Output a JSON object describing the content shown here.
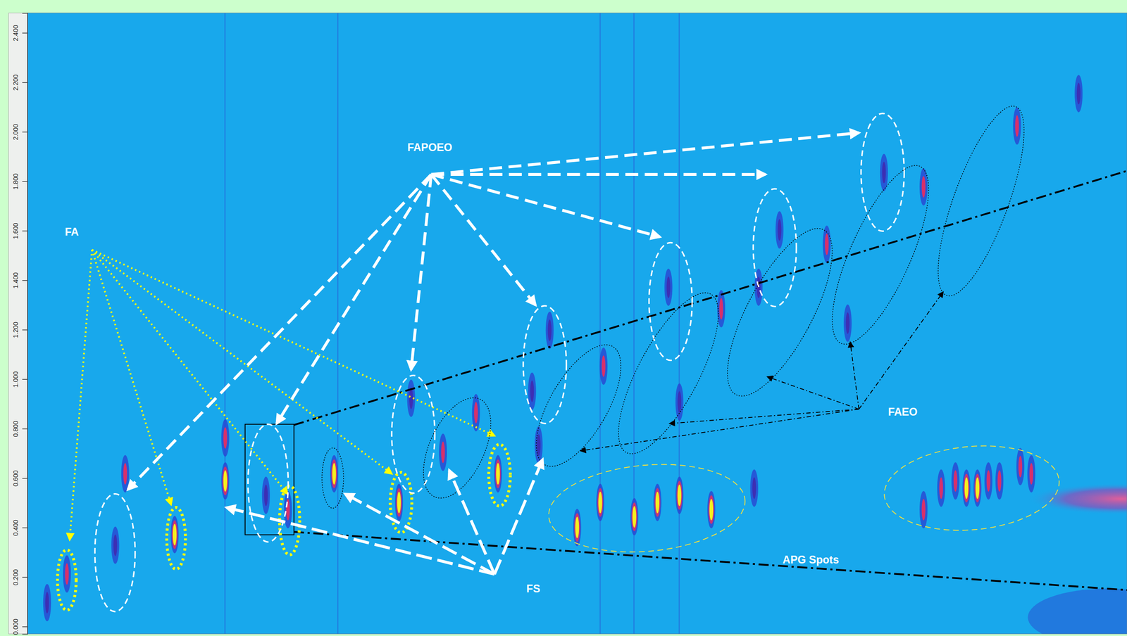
{
  "chart_data": {
    "type": "scatter",
    "tick_labels": "y",
    "xlim": [
      0,
      100
    ],
    "ylim": [
      -0.03,
      2.48
    ],
    "yticks": [
      {
        "value": 0,
        "label": "0.000"
      },
      {
        "value": 0.2,
        "label": "0.200"
      },
      {
        "value": 0.4,
        "label": "0.400"
      },
      {
        "value": 0.6,
        "label": "0.600"
      },
      {
        "value": 0.8,
        "label": "0.800"
      },
      {
        "value": 1.0,
        "label": "1.000"
      },
      {
        "value": 1.2,
        "label": "1.200"
      },
      {
        "value": 1.4,
        "label": "1.400"
      },
      {
        "value": 1.6,
        "label": "1.600"
      },
      {
        "value": 1.8,
        "label": "1.800"
      },
      {
        "value": 2.0,
        "label": "2.000"
      },
      {
        "value": 2.2,
        "label": "2.200"
      },
      {
        "value": 2.4,
        "label": "2.400"
      }
    ],
    "x": [
      3.6,
      8.0,
      8.9,
      13.4,
      18.0,
      18.0,
      21.7,
      23.7,
      27.9,
      33.8,
      34.9,
      37.8,
      40.8,
      42.8,
      45.9,
      46.5,
      47.5,
      50.0,
      52.1,
      52.4,
      55.2,
      57.3,
      58.3,
      59.3,
      59.3,
      62.2,
      63.1,
      66.1,
      68.4,
      72.7,
      74.6,
      77.9,
      81.5,
      81.5,
      83.1,
      84.4,
      85.4,
      86.4,
      87.4,
      88.4,
      90.3,
      91.3,
      90.0,
      66.5,
      1.8,
      95.6
    ],
    "values": [
      0.212,
      0.328,
      0.617,
      0.371,
      0.588,
      0.762,
      0.53,
      0.472,
      0.617,
      0.501,
      0.922,
      0.704,
      0.864,
      0.617,
      0.951,
      0.733,
      1.197,
      0.4,
      0.501,
      1.052,
      0.443,
      0.501,
      1.371,
      0.53,
      0.907,
      0.472,
      1.284,
      0.559,
      1.603,
      1.545,
      1.226,
      1.835,
      1.777,
      0.472,
      0.559,
      0.588,
      0.559,
      0.559,
      0.588,
      0.588,
      0.646,
      0.617,
      2.023,
      1.371,
      0.096,
      2.154
    ],
    "colors": [
      "#d8306a",
      "#3c2fb4",
      "#d8306a",
      "#f5f01e",
      "#f5f01e",
      "#d8306a",
      "#3c2fb4",
      "#d8306a",
      "#f5f01e",
      "#f5f01e",
      "#3c2fb4",
      "#d8306a",
      "#d8306a",
      "#f5f01e",
      "#3c2fb4",
      "#3c2fb4",
      "#3c2fb4",
      "#f5f01e",
      "#f5f01e",
      "#d8306a",
      "#f5f01e",
      "#f5f01e",
      "#3c2fb4",
      "#f5f01e",
      "#3c2fb4",
      "#f5f01e",
      "#d8306a",
      "#3c2fb4",
      "#3c2fb4",
      "#d8306a",
      "#3c2fb4",
      "#3c2fb4",
      "#d8306a",
      "#d8306a",
      "#d8306a",
      "#d8306a",
      "#f5f01e",
      "#f5f01e",
      "#d8306a",
      "#d8306a",
      "#d8306a",
      "#d8306a",
      "#d8306a",
      "#3c2fb4",
      "#3c2fb4",
      "#3c2fb4"
    ],
    "annotations": [
      "FA",
      "FAPOEO",
      "FS",
      "FAEO",
      "APG Spots"
    ]
  }
}
